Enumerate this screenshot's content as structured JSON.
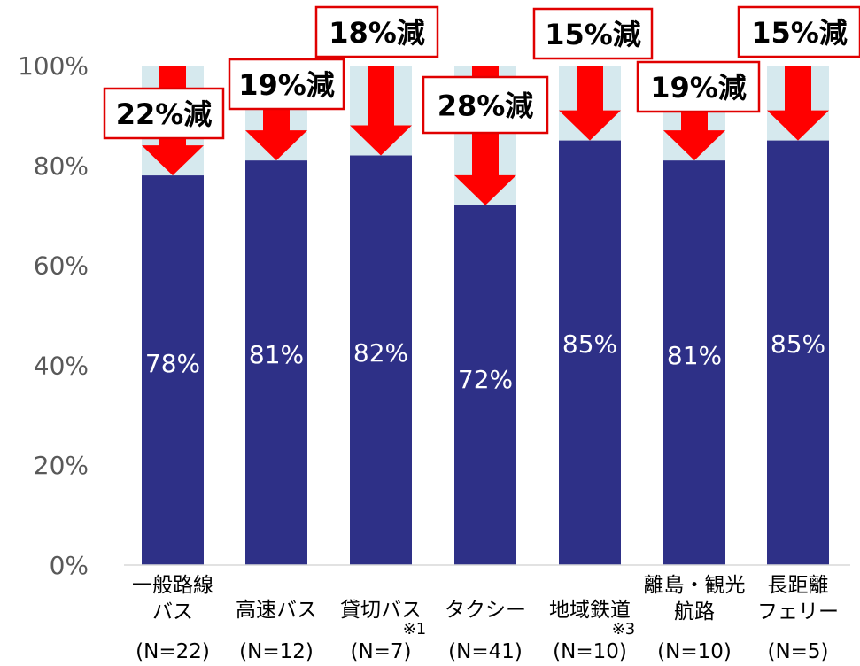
{
  "chart_data": {
    "type": "bar",
    "stacked": true,
    "categories": [
      {
        "lines": [
          "一般路線",
          "バス"
        ],
        "note": "",
        "n": "(N=22)"
      },
      {
        "lines": [
          "高速バス"
        ],
        "note": "",
        "n": "(N=12)"
      },
      {
        "lines": [
          "貸切バス"
        ],
        "note": "※1",
        "n": "(N=7)"
      },
      {
        "lines": [
          "タクシー"
        ],
        "note": "",
        "n": "(N=41)"
      },
      {
        "lines": [
          "地域鉄道"
        ],
        "note": "※3",
        "n": "(N=10)"
      },
      {
        "lines": [
          "離島・観光",
          "航路"
        ],
        "note": "",
        "n": "(N=10)"
      },
      {
        "lines": [
          "長距離",
          "フェリー"
        ],
        "note": "",
        "n": "(N=5)"
      }
    ],
    "values": [
      78,
      81,
      82,
      72,
      85,
      81,
      85
    ],
    "value_labels": [
      "78%",
      "81%",
      "82%",
      "72%",
      "85%",
      "81%",
      "85%"
    ],
    "decrease_labels": [
      "22%減",
      "19%減",
      "18%減",
      "28%減",
      "15%減",
      "19%減",
      "15%減"
    ],
    "ylim": [
      0,
      100
    ],
    "yticks": [
      0,
      20,
      40,
      60,
      80,
      100
    ],
    "ytick_labels": [
      "0%",
      "20%",
      "40%",
      "60%",
      "80%",
      "100%"
    ],
    "colors": {
      "bar": "#2E3087",
      "remainder": "#D6E9EE",
      "arrow": "#FF0000",
      "box_border": "#E00000"
    }
  }
}
